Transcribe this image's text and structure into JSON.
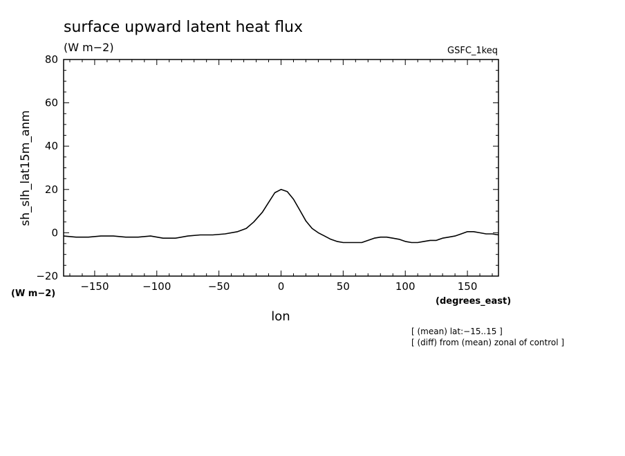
{
  "chart_data": {
    "type": "line",
    "title": "surface upward latent heat flux",
    "units": "(W m−2)",
    "experiment": "GSFC_1keq",
    "ylabel": "sh_slh_lat15m_anm",
    "ylabel_units": "(W m−2)",
    "xlabel": "lon",
    "xlabel_units": "(degrees_east)",
    "xlim": [
      -175,
      175
    ],
    "ylim": [
      -20,
      80
    ],
    "xticks": [
      -150,
      -100,
      -50,
      0,
      50,
      100,
      150
    ],
    "xtick_labels": [
      "−150",
      "−100",
      "−50",
      "0",
      "50",
      "100",
      "150"
    ],
    "yticks": [
      -20,
      0,
      20,
      40,
      60,
      80
    ],
    "ytick_labels": [
      "−20",
      "0",
      "20",
      "40",
      "60",
      "80"
    ],
    "grid": false,
    "notes": [
      "[ (mean) lat:−15..15 ]",
      "[ (diff) from (mean) zonal of control ]"
    ],
    "series": [
      {
        "x": [
          -175,
          -165,
          -155,
          -145,
          -135,
          -125,
          -115,
          -105,
          -95,
          -85,
          -75,
          -65,
          -55,
          -45,
          -35,
          -28,
          -22,
          -15,
          -10,
          -5,
          0,
          5,
          10,
          15,
          20,
          25,
          30,
          35,
          40,
          45,
          50,
          55,
          60,
          65,
          70,
          75,
          80,
          85,
          90,
          95,
          100,
          105,
          110,
          115,
          120,
          125,
          130,
          135,
          140,
          145,
          150,
          155,
          160,
          165,
          170,
          175
        ],
        "y": [
          -1.5,
          -2,
          -2,
          -1.5,
          -1.5,
          -2,
          -2,
          -1.5,
          -2.5,
          -2.5,
          -1.5,
          -1,
          -1,
          -0.5,
          0.5,
          2,
          5,
          9.5,
          14,
          18.5,
          20,
          19,
          15.5,
          10.5,
          5.5,
          2,
          0,
          -1.5,
          -3,
          -4,
          -4.5,
          -4.5,
          -4.5,
          -4.5,
          -3.5,
          -2.5,
          -2,
          -2,
          -2.5,
          -3,
          -4,
          -4.5,
          -4.5,
          -4,
          -3.5,
          -3.5,
          -2.5,
          -2,
          -1.5,
          -0.5,
          0.5,
          0.5,
          0,
          -0.5,
          -0.5,
          -1
        ]
      }
    ]
  }
}
